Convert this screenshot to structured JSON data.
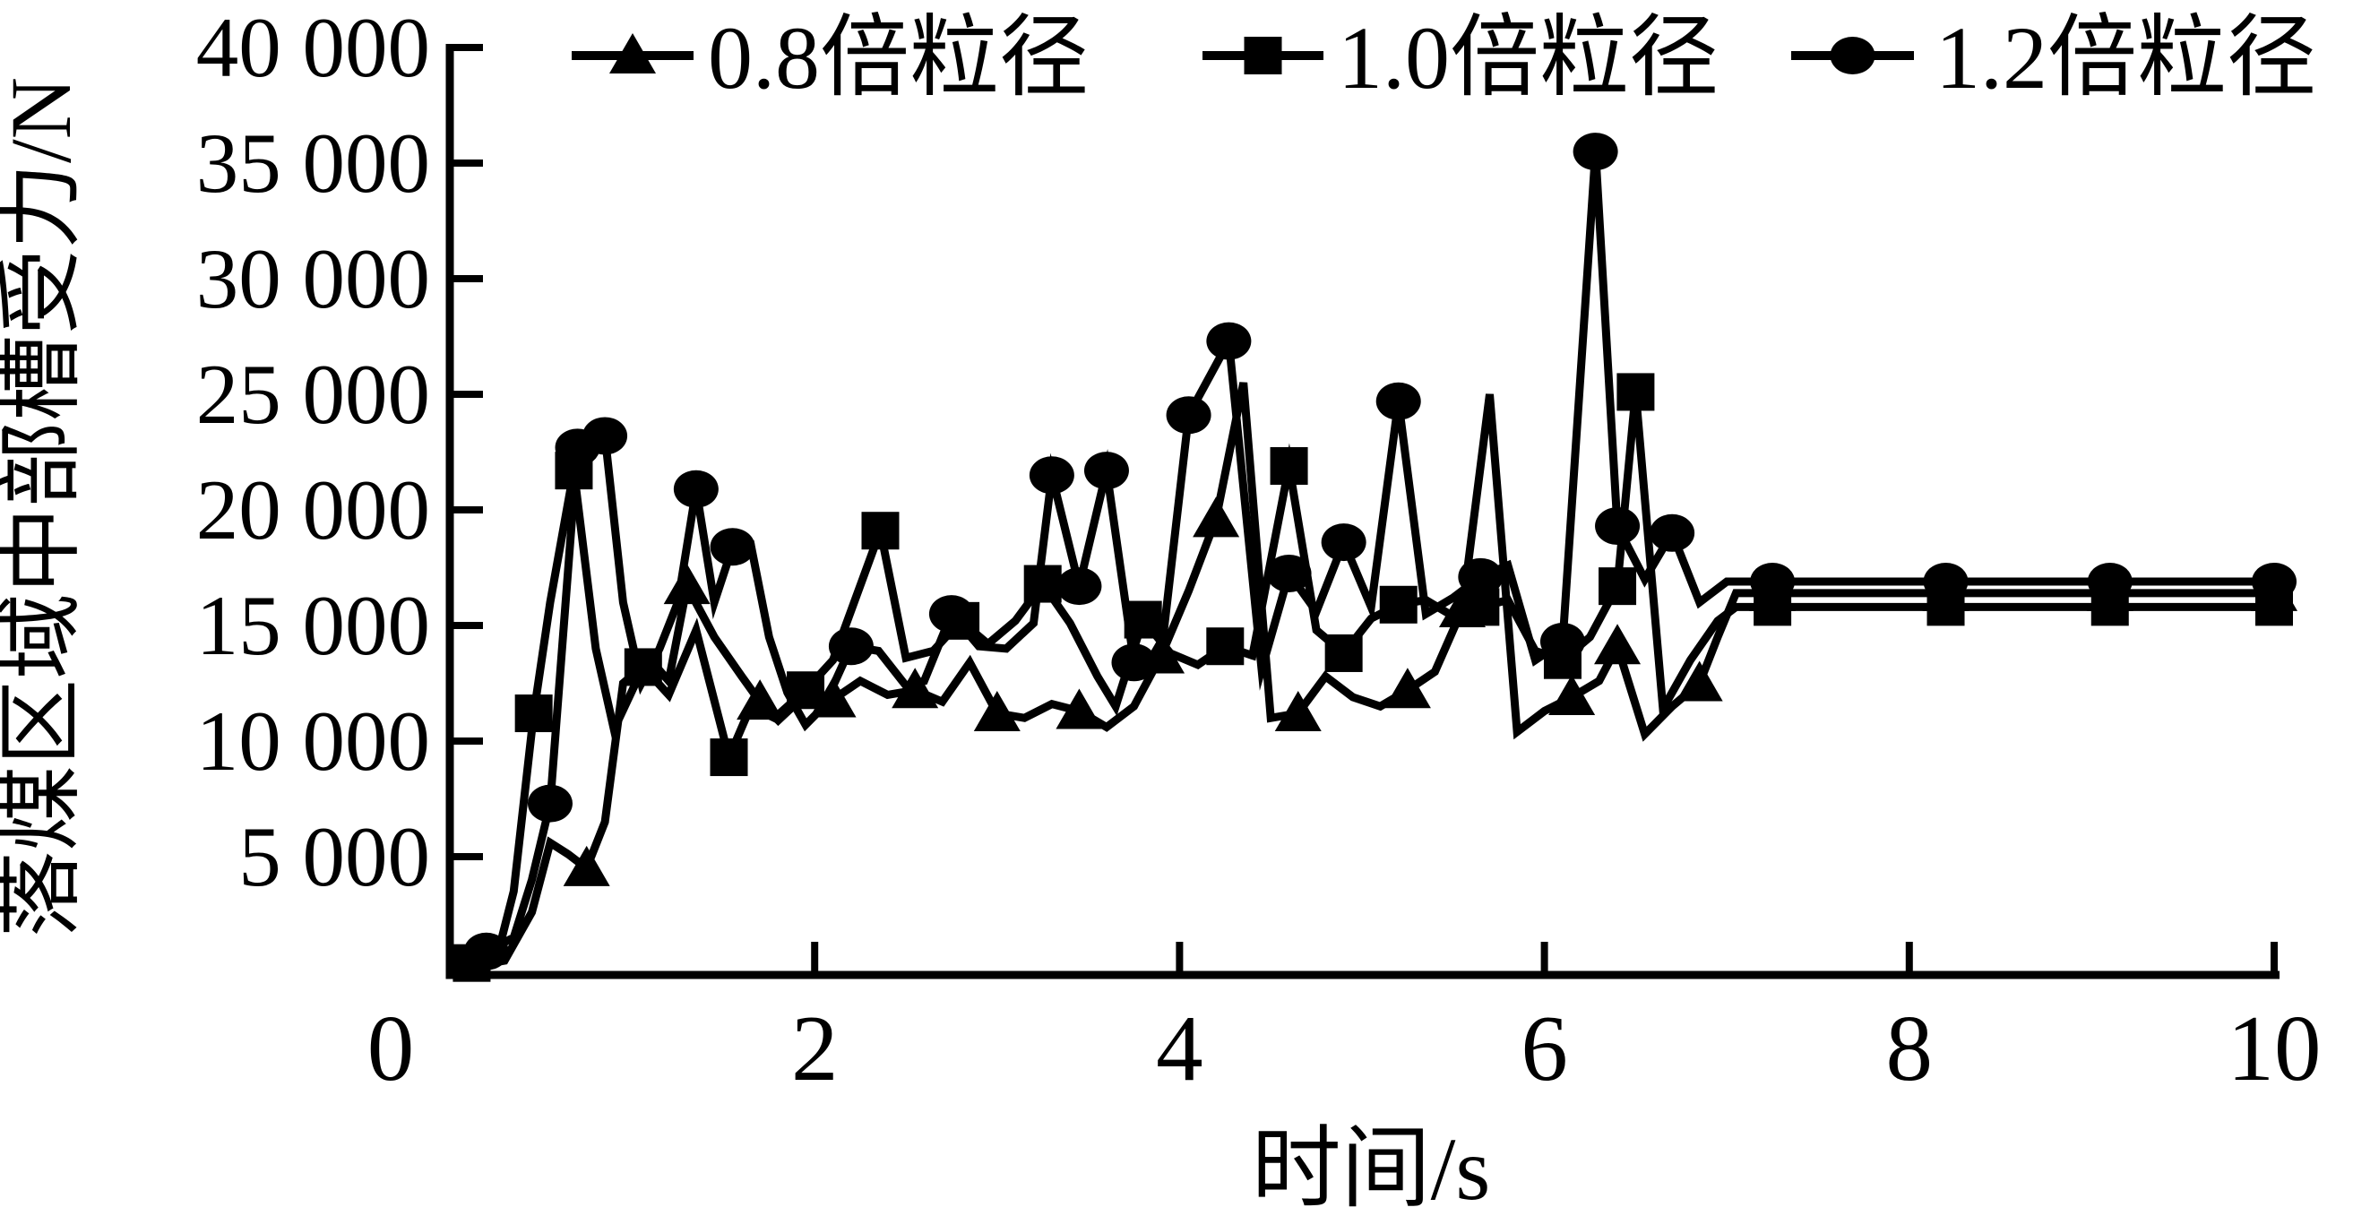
{
  "figure": {
    "background": "#ffffff",
    "ink_color": "#000000"
  },
  "chart_data": {
    "type": "line",
    "title": "",
    "xlabel": "时间/s",
    "ylabel": "落煤区域中部槽受力/N",
    "xlim": [
      0,
      10
    ],
    "ylim": [
      0,
      40000
    ],
    "xticks": [
      0,
      2,
      4,
      6,
      8,
      10
    ],
    "xtick_labels": [
      "0",
      "2",
      "4",
      "6",
      "8",
      "10"
    ],
    "yticks": [
      5000,
      10000,
      15000,
      20000,
      25000,
      30000,
      35000,
      40000
    ],
    "ytick_labels": [
      "5 000",
      "10 000",
      "15 000",
      "20 000",
      "25 000",
      "30 000",
      "35 000",
      "40 000"
    ],
    "grid": false,
    "legend_position": "top",
    "series": [
      {
        "name": "0.8倍粒径",
        "marker": "triangle",
        "points": [
          [
            0.15,
            300
          ],
          [
            0.3,
            500
          ],
          [
            0.45,
            2600
          ],
          [
            0.55,
            5600
          ],
          [
            0.65,
            5100
          ],
          [
            0.75,
            4500
          ],
          [
            0.85,
            6500
          ],
          [
            0.95,
            12500
          ],
          [
            1.1,
            13500
          ],
          [
            1.2,
            12600
          ],
          [
            1.3,
            16700
          ],
          [
            1.45,
            14500
          ],
          [
            1.6,
            12800
          ],
          [
            1.7,
            11700
          ],
          [
            1.8,
            10900
          ],
          [
            1.95,
            12000
          ],
          [
            2.1,
            11800
          ],
          [
            2.25,
            12600
          ],
          [
            2.4,
            12000
          ],
          [
            2.55,
            12200
          ],
          [
            2.7,
            11700
          ],
          [
            2.85,
            13400
          ],
          [
            3.0,
            11200
          ],
          [
            3.15,
            11000
          ],
          [
            3.3,
            11600
          ],
          [
            3.45,
            11300
          ],
          [
            3.6,
            10600
          ],
          [
            3.75,
            11500
          ],
          [
            3.9,
            13700
          ],
          [
            4.05,
            16500
          ],
          [
            4.2,
            19600
          ],
          [
            4.35,
            25500
          ],
          [
            4.5,
            11000
          ],
          [
            4.65,
            11200
          ],
          [
            4.8,
            12800
          ],
          [
            4.95,
            11900
          ],
          [
            5.1,
            11500
          ],
          [
            5.25,
            12200
          ],
          [
            5.4,
            13000
          ],
          [
            5.55,
            15700
          ],
          [
            5.7,
            25000
          ],
          [
            5.85,
            10400
          ],
          [
            6.0,
            11300
          ],
          [
            6.15,
            11900
          ],
          [
            6.3,
            12600
          ],
          [
            6.4,
            14100
          ],
          [
            6.55,
            10300
          ],
          [
            6.7,
            11500
          ],
          [
            6.85,
            12500
          ],
          [
            6.95,
            14500
          ],
          [
            7.05,
            16400
          ],
          [
            10,
            16400
          ]
        ],
        "marker_points": [
          [
            0.75,
            4500
          ],
          [
            1.3,
            16700
          ],
          [
            1.7,
            11700
          ],
          [
            2.1,
            11800
          ],
          [
            2.55,
            12200
          ],
          [
            3.0,
            11200
          ],
          [
            3.45,
            11300
          ],
          [
            3.9,
            13700
          ],
          [
            4.2,
            19600
          ],
          [
            4.65,
            11200
          ],
          [
            5.25,
            12200
          ],
          [
            5.55,
            15700
          ],
          [
            6.15,
            11900
          ],
          [
            6.4,
            14100
          ],
          [
            6.85,
            12500
          ],
          [
            7.25,
            16400
          ],
          [
            8.2,
            16400
          ],
          [
            9.1,
            16400
          ],
          [
            10,
            16400
          ]
        ],
        "steady_value": 16400
      },
      {
        "name": "1.0倍粒径",
        "marker": "square",
        "points": [
          [
            0.12,
            400
          ],
          [
            0.25,
            400
          ],
          [
            0.35,
            3500
          ],
          [
            0.46,
            11200
          ],
          [
            0.55,
            16000
          ],
          [
            0.68,
            21700
          ],
          [
            0.8,
            14000
          ],
          [
            0.9,
            10500
          ],
          [
            1.06,
            13200
          ],
          [
            1.2,
            12000
          ],
          [
            1.35,
            14800
          ],
          [
            1.53,
            9300
          ],
          [
            1.65,
            11500
          ],
          [
            1.78,
            11000
          ],
          [
            1.95,
            12200
          ],
          [
            2.1,
            13500
          ],
          [
            2.36,
            19100
          ],
          [
            2.5,
            13600
          ],
          [
            2.65,
            13900
          ],
          [
            2.8,
            15200
          ],
          [
            2.95,
            14200
          ],
          [
            3.1,
            15200
          ],
          [
            3.25,
            16800
          ],
          [
            3.4,
            15100
          ],
          [
            3.55,
            12800
          ],
          [
            3.65,
            11500
          ],
          [
            3.8,
            15250
          ],
          [
            3.95,
            13800
          ],
          [
            4.1,
            13300
          ],
          [
            4.25,
            14100
          ],
          [
            4.4,
            13700
          ],
          [
            4.6,
            21900
          ],
          [
            4.75,
            14800
          ],
          [
            4.9,
            13800
          ],
          [
            5.05,
            15300
          ],
          [
            5.2,
            15900
          ],
          [
            5.35,
            16100
          ],
          [
            5.5,
            15400
          ],
          [
            5.65,
            15800
          ],
          [
            5.8,
            16100
          ],
          [
            5.95,
            13900
          ],
          [
            6.1,
            13500
          ],
          [
            6.25,
            14500
          ],
          [
            6.4,
            16700
          ],
          [
            6.5,
            25100
          ],
          [
            6.65,
            11400
          ],
          [
            6.8,
            13500
          ],
          [
            6.95,
            15200
          ],
          [
            7.05,
            15800
          ],
          [
            10,
            15800
          ]
        ],
        "marker_points": [
          [
            0.12,
            400
          ],
          [
            0.46,
            11200
          ],
          [
            0.68,
            21700
          ],
          [
            1.06,
            13200
          ],
          [
            1.53,
            9300
          ],
          [
            1.95,
            12200
          ],
          [
            2.36,
            19100
          ],
          [
            2.8,
            15200
          ],
          [
            3.25,
            16800
          ],
          [
            3.8,
            15250
          ],
          [
            4.25,
            14100
          ],
          [
            4.6,
            21900
          ],
          [
            4.9,
            13800
          ],
          [
            5.2,
            15900
          ],
          [
            5.65,
            15800
          ],
          [
            6.1,
            13500
          ],
          [
            6.4,
            16700
          ],
          [
            6.5,
            25100
          ],
          [
            7.25,
            15800
          ],
          [
            8.2,
            15800
          ],
          [
            9.1,
            15800
          ],
          [
            10,
            15800
          ]
        ],
        "steady_value": 15800
      },
      {
        "name": "1.2倍粒径",
        "marker": "circle",
        "points": [
          [
            0.2,
            900
          ],
          [
            0.35,
            1500
          ],
          [
            0.45,
            4000
          ],
          [
            0.55,
            7300
          ],
          [
            0.7,
            22700
          ],
          [
            0.85,
            23200
          ],
          [
            0.95,
            16000
          ],
          [
            1.05,
            12500
          ],
          [
            1.15,
            14000
          ],
          [
            1.25,
            16000
          ],
          [
            1.35,
            20900
          ],
          [
            1.45,
            16000
          ],
          [
            1.55,
            18400
          ],
          [
            1.65,
            18500
          ],
          [
            1.75,
            14500
          ],
          [
            1.85,
            12100
          ],
          [
            1.95,
            10700
          ],
          [
            2.05,
            11500
          ],
          [
            2.2,
            14100
          ],
          [
            2.35,
            13900
          ],
          [
            2.5,
            12400
          ],
          [
            2.6,
            12600
          ],
          [
            2.75,
            15500
          ],
          [
            2.9,
            14100
          ],
          [
            3.05,
            14000
          ],
          [
            3.2,
            15100
          ],
          [
            3.3,
            21500
          ],
          [
            3.45,
            16700
          ],
          [
            3.6,
            21700
          ],
          [
            3.75,
            13400
          ],
          [
            3.9,
            13800
          ],
          [
            4.05,
            24100
          ],
          [
            4.27,
            27300
          ],
          [
            4.45,
            13100
          ],
          [
            4.6,
            17250
          ],
          [
            4.75,
            15600
          ],
          [
            4.9,
            18600
          ],
          [
            5.05,
            15800
          ],
          [
            5.2,
            24700
          ],
          [
            5.35,
            15500
          ],
          [
            5.5,
            16200
          ],
          [
            5.65,
            17100
          ],
          [
            5.8,
            17600
          ],
          [
            5.95,
            13500
          ],
          [
            6.1,
            14300
          ],
          [
            6.28,
            35500
          ],
          [
            6.4,
            19300
          ],
          [
            6.55,
            17000
          ],
          [
            6.7,
            19000
          ],
          [
            6.85,
            16000
          ],
          [
            7.0,
            16900
          ],
          [
            10,
            16900
          ]
        ],
        "marker_points": [
          [
            0.2,
            900
          ],
          [
            0.55,
            7300
          ],
          [
            0.7,
            22700
          ],
          [
            0.85,
            23200
          ],
          [
            1.35,
            20900
          ],
          [
            1.55,
            18400
          ],
          [
            2.2,
            14100
          ],
          [
            2.75,
            15500
          ],
          [
            3.3,
            21500
          ],
          [
            3.45,
            16700
          ],
          [
            3.6,
            21700
          ],
          [
            3.75,
            13400
          ],
          [
            4.05,
            24100
          ],
          [
            4.27,
            27300
          ],
          [
            4.6,
            17250
          ],
          [
            4.9,
            18600
          ],
          [
            5.2,
            24700
          ],
          [
            5.65,
            17100
          ],
          [
            6.1,
            14300
          ],
          [
            6.28,
            35500
          ],
          [
            6.4,
            19300
          ],
          [
            6.7,
            19000
          ],
          [
            7.25,
            16900
          ],
          [
            8.2,
            16900
          ],
          [
            9.1,
            16900
          ],
          [
            10,
            16900
          ]
        ],
        "steady_value": 16900
      }
    ]
  }
}
